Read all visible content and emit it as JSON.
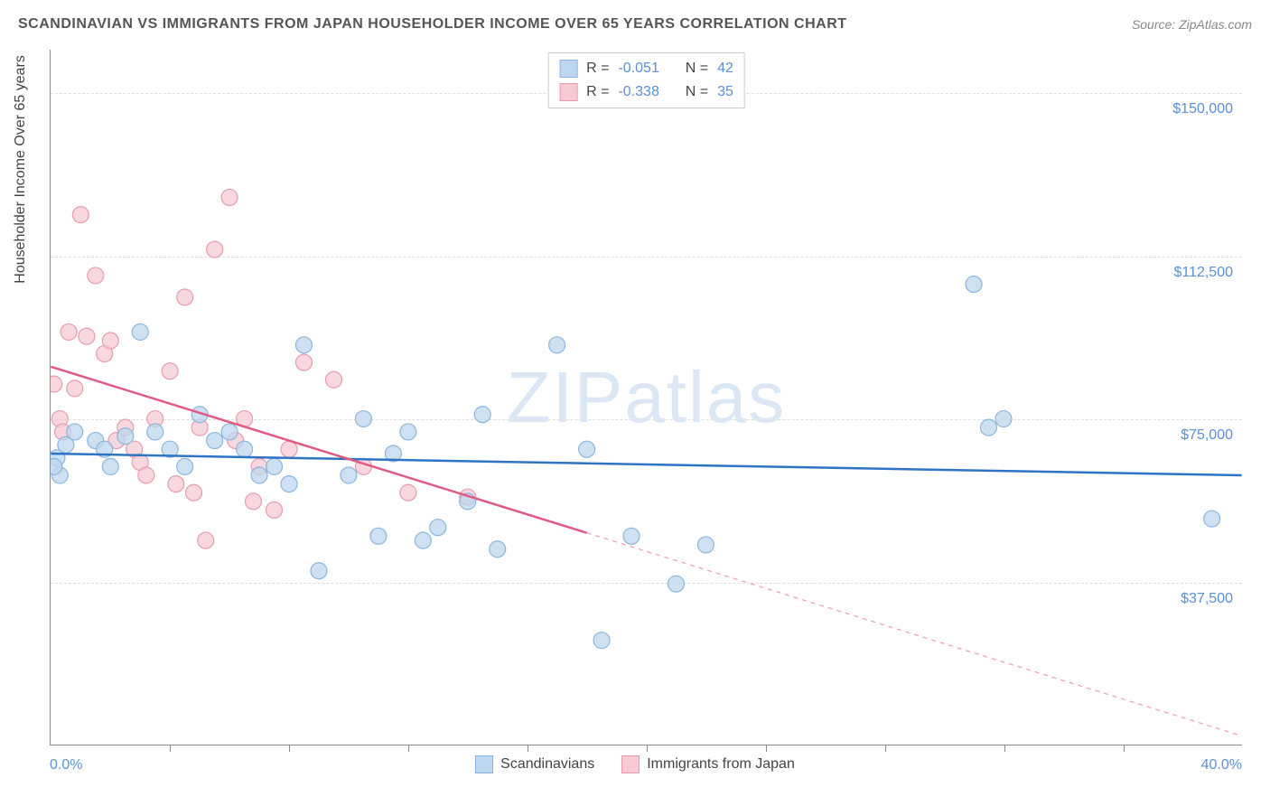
{
  "header": {
    "title": "SCANDINAVIAN VS IMMIGRANTS FROM JAPAN HOUSEHOLDER INCOME OVER 65 YEARS CORRELATION CHART",
    "source": "Source: ZipAtlas.com"
  },
  "axis": {
    "y_title": "Householder Income Over 65 years",
    "x_min_label": "0.0%",
    "x_max_label": "40.0%",
    "y_ticks": [
      {
        "v": 37500,
        "label": "$37,500"
      },
      {
        "v": 75000,
        "label": "$75,000"
      },
      {
        "v": 112500,
        "label": "$112,500"
      },
      {
        "v": 150000,
        "label": "$150,000"
      }
    ],
    "xlim": [
      0,
      40
    ],
    "ylim": [
      0,
      160000
    ],
    "x_tick_step": 4
  },
  "series": {
    "a": {
      "label": "Scandinavians",
      "fill": "#bcd7ef",
      "stroke": "#8bb5dd",
      "line_color": "#2f74c4",
      "R": "-0.051",
      "N": "42",
      "trend": {
        "y_at_xmin": 67000,
        "y_at_xmax": 62000,
        "solid_until_x": 40
      },
      "points": [
        [
          0.2,
          66000
        ],
        [
          0.5,
          69000
        ],
        [
          0.8,
          72000
        ],
        [
          0.3,
          62000
        ],
        [
          0.1,
          64000
        ],
        [
          1.5,
          70000
        ],
        [
          1.8,
          68000
        ],
        [
          2.0,
          64000
        ],
        [
          2.5,
          71000
        ],
        [
          3.0,
          95000
        ],
        [
          3.5,
          72000
        ],
        [
          4.0,
          68000
        ],
        [
          4.5,
          64000
        ],
        [
          5.0,
          76000
        ],
        [
          5.5,
          70000
        ],
        [
          6.0,
          72000
        ],
        [
          6.5,
          68000
        ],
        [
          7.0,
          62000
        ],
        [
          7.5,
          64000
        ],
        [
          8.0,
          60000
        ],
        [
          8.5,
          92000
        ],
        [
          9.0,
          40000
        ],
        [
          10.0,
          62000
        ],
        [
          10.5,
          75000
        ],
        [
          11.0,
          48000
        ],
        [
          11.5,
          67000
        ],
        [
          12.0,
          72000
        ],
        [
          12.5,
          47000
        ],
        [
          13.0,
          50000
        ],
        [
          14.0,
          56000
        ],
        [
          14.5,
          76000
        ],
        [
          15.0,
          45000
        ],
        [
          17.0,
          92000
        ],
        [
          18.0,
          68000
        ],
        [
          18.5,
          24000
        ],
        [
          19.5,
          48000
        ],
        [
          21.0,
          37000
        ],
        [
          22.0,
          46000
        ],
        [
          31.0,
          106000
        ],
        [
          31.5,
          73000
        ],
        [
          32.0,
          75000
        ],
        [
          39.0,
          52000
        ]
      ]
    },
    "b": {
      "label": "Immigrants from Japan",
      "fill": "#f6c9d3",
      "stroke": "#e89bb0",
      "line_color": "#e05a83",
      "R": "-0.338",
      "N": "35",
      "trend": {
        "y_at_xmin": 87000,
        "y_at_xmax": 2000,
        "solid_until_x": 18
      },
      "points": [
        [
          0.1,
          83000
        ],
        [
          0.3,
          75000
        ],
        [
          0.4,
          72000
        ],
        [
          0.6,
          95000
        ],
        [
          0.8,
          82000
        ],
        [
          1.0,
          122000
        ],
        [
          1.2,
          94000
        ],
        [
          1.5,
          108000
        ],
        [
          1.8,
          90000
        ],
        [
          2.0,
          93000
        ],
        [
          2.2,
          70000
        ],
        [
          2.5,
          73000
        ],
        [
          2.8,
          68000
        ],
        [
          3.0,
          65000
        ],
        [
          3.2,
          62000
        ],
        [
          3.5,
          75000
        ],
        [
          4.0,
          86000
        ],
        [
          4.2,
          60000
        ],
        [
          4.5,
          103000
        ],
        [
          4.8,
          58000
        ],
        [
          5.0,
          73000
        ],
        [
          5.2,
          47000
        ],
        [
          5.5,
          114000
        ],
        [
          6.0,
          126000
        ],
        [
          6.2,
          70000
        ],
        [
          6.5,
          75000
        ],
        [
          6.8,
          56000
        ],
        [
          7.0,
          64000
        ],
        [
          7.5,
          54000
        ],
        [
          8.0,
          68000
        ],
        [
          8.5,
          88000
        ],
        [
          9.5,
          84000
        ],
        [
          10.5,
          64000
        ],
        [
          12.0,
          58000
        ],
        [
          14.0,
          57000
        ]
      ]
    }
  },
  "legend_labels": {
    "R": "R =",
    "N": "N ="
  },
  "watermark": {
    "a": "ZIP",
    "b": "atlas"
  },
  "style": {
    "marker_r": 9,
    "marker_opacity": 0.75,
    "line_width": 2.5,
    "grid_color": "#dddddd",
    "background": "#ffffff",
    "text_color": "#444444",
    "value_color": "#5b8fd6"
  }
}
